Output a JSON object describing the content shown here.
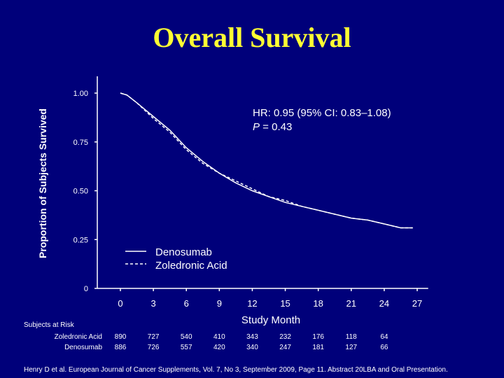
{
  "slide": {
    "title": "Overall Survival",
    "citation": "Henry D et al. European Journal of Cancer Supplements, Vol. 7, No 3, September 2009, Page 11. Abstract 20LBA and Oral Presentation."
  },
  "chart_data": {
    "type": "line",
    "xlabel": "Study Month",
    "ylabel": "Proportion of Subjects Survived",
    "xlim": [
      -3,
      28
    ],
    "ylim": [
      0,
      1.05
    ],
    "x_ticks": [
      0,
      3,
      6,
      9,
      12,
      15,
      18,
      21,
      24,
      27
    ],
    "y_ticks": [
      {
        "value": 0,
        "label": "0"
      },
      {
        "value": 0.25,
        "label": "0.25"
      },
      {
        "value": 0.5,
        "label": "0.50"
      },
      {
        "value": 0.75,
        "label": "0.75"
      },
      {
        "value": 1.0,
        "label": "1.00"
      }
    ],
    "annotation": {
      "hr": "HR: 0.95 (95% CI: 0.83–1.08)",
      "p_label": "P",
      "p_value": " = 0.43"
    },
    "legend_position": "bottom-center",
    "series": [
      {
        "name": "Denosumab",
        "style": "solid",
        "color": "#ffffff",
        "x": [
          0,
          0.6,
          1.5,
          3,
          4.5,
          6,
          7.5,
          9,
          10.5,
          12,
          13.5,
          15,
          16.5,
          18,
          19.5,
          21,
          22.5,
          24,
          25.5,
          26.6
        ],
        "y": [
          1.0,
          0.99,
          0.95,
          0.88,
          0.81,
          0.72,
          0.65,
          0.59,
          0.54,
          0.5,
          0.47,
          0.44,
          0.42,
          0.4,
          0.38,
          0.36,
          0.35,
          0.33,
          0.31,
          0.31
        ]
      },
      {
        "name": "Zoledronic Acid",
        "style": "dashed",
        "color": "#ffffff",
        "x": [
          0,
          0.6,
          1.5,
          3,
          4.5,
          6,
          7.5,
          9,
          10.5,
          12,
          13.5,
          15,
          16.5,
          18,
          19.5,
          21,
          22.5,
          24,
          25.5,
          26.6
        ],
        "y": [
          1.0,
          0.99,
          0.95,
          0.87,
          0.8,
          0.71,
          0.64,
          0.59,
          0.55,
          0.51,
          0.47,
          0.45,
          0.42,
          0.4,
          0.38,
          0.36,
          0.35,
          0.33,
          0.31,
          0.31
        ]
      }
    ],
    "at_risk": {
      "title": "Subjects at Risk",
      "rows": [
        {
          "label": "Zoledronic Acid",
          "values": [
            "890",
            "727",
            "540",
            "410",
            "343",
            "232",
            "176",
            "118",
            "64"
          ]
        },
        {
          "label": "Denosumab",
          "values": [
            "886",
            "726",
            "557",
            "420",
            "340",
            "247",
            "181",
            "127",
            "66"
          ]
        }
      ]
    }
  }
}
